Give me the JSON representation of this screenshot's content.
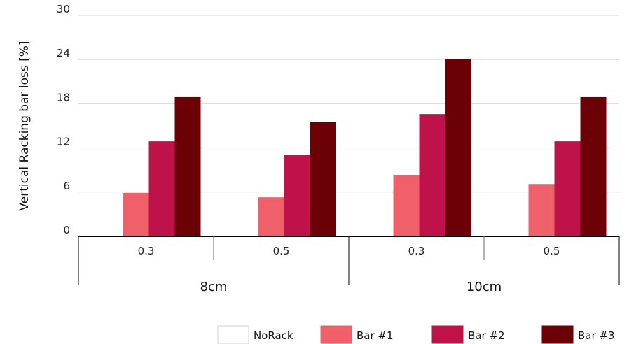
{
  "chart_data": {
    "type": "bar",
    "ylabel": "Vertical Racking bar loss [%]",
    "xlabel": "",
    "ylim": [
      0,
      30
    ],
    "yticks": [
      0,
      6,
      12,
      18,
      24,
      30
    ],
    "grid": true,
    "legend_position": "bottom-right",
    "groups": [
      {
        "label": "8cm",
        "categories": [
          "0.3",
          "0.5"
        ]
      },
      {
        "label": "10cm",
        "categories": [
          "0.3",
          "0.5"
        ]
      }
    ],
    "categories": [
      "0.3",
      "0.5",
      "0.3",
      "0.5"
    ],
    "series": [
      {
        "name": "NoRack",
        "color": "#ffffff",
        "values": [
          0,
          0,
          0,
          0
        ]
      },
      {
        "name": "Bar #1",
        "color": "#f0606a",
        "values": [
          5.9,
          5.3,
          8.3,
          7.1
        ]
      },
      {
        "name": "Bar #2",
        "color": "#c0124a",
        "values": [
          12.9,
          11.1,
          16.6,
          12.9
        ]
      },
      {
        "name": "Bar #3",
        "color": "#6b0006",
        "values": [
          18.9,
          15.5,
          24.1,
          18.9
        ]
      }
    ]
  }
}
